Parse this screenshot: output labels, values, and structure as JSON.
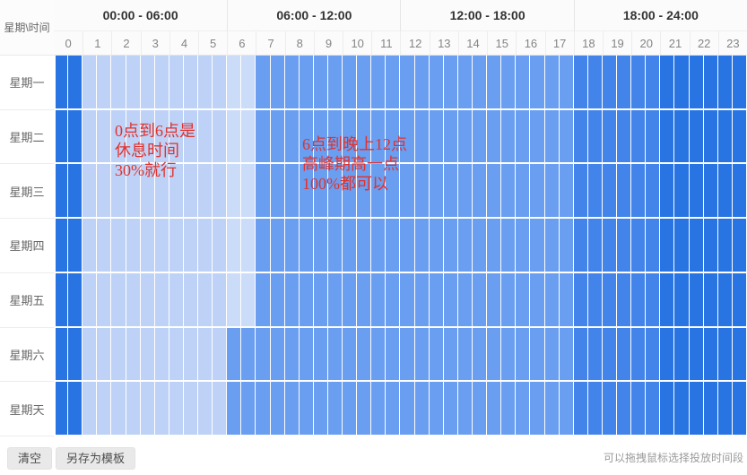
{
  "header": {
    "corner": "星期\\时间",
    "groups": [
      "00:00 - 06:00",
      "06:00 - 12:00",
      "12:00 - 18:00",
      "18:00 - 24:00"
    ],
    "hours": [
      "0",
      "1",
      "2",
      "3",
      "4",
      "5",
      "6",
      "7",
      "8",
      "9",
      "10",
      "11",
      "12",
      "13",
      "14",
      "15",
      "16",
      "17",
      "18",
      "19",
      "20",
      "21",
      "22",
      "23"
    ]
  },
  "days": [
    {
      "label": "星期一",
      "pattern": "weekday"
    },
    {
      "label": "星期二",
      "pattern": "weekday"
    },
    {
      "label": "星期三",
      "pattern": "weekday"
    },
    {
      "label": "星期四",
      "pattern": "weekday"
    },
    {
      "label": "星期五",
      "pattern": "weekday"
    },
    {
      "label": "星期六",
      "pattern": "weekend"
    },
    {
      "label": "星期天",
      "pattern": "weekend"
    }
  ],
  "patterns": {
    "weekday": [
      {
        "start": 0,
        "end": 1,
        "tier": "full"
      },
      {
        "start": 1,
        "end": 6,
        "tier": "low"
      },
      {
        "start": 6,
        "end": 7,
        "tier": "lowest"
      },
      {
        "start": 7,
        "end": 18,
        "tier": "mid"
      },
      {
        "start": 18,
        "end": 21,
        "tier": "high"
      },
      {
        "start": 21,
        "end": 24,
        "tier": "full"
      }
    ],
    "weekend": [
      {
        "start": 0,
        "end": 1,
        "tier": "full"
      },
      {
        "start": 1,
        "end": 6,
        "tier": "low"
      },
      {
        "start": 6,
        "end": 18,
        "tier": "mid"
      },
      {
        "start": 18,
        "end": 21,
        "tier": "high"
      },
      {
        "start": 21,
        "end": 24,
        "tier": "full"
      }
    ]
  },
  "tiers": {
    "full": "#2874e2",
    "high": "#4384ea",
    "mid": "#699ef0",
    "low": "#bdd2f6",
    "lowest": "#cbdcf8"
  },
  "half_hours_per_day": 48,
  "annotations": [
    {
      "color": "#e2312e",
      "lines": [
        "0点到6点是",
        "休息时间",
        "30%就行"
      ]
    },
    {
      "color": "#e2312e",
      "lines": [
        "6点到晚上12点",
        "高峰期高一点",
        "100%都可以"
      ]
    }
  ],
  "footer": {
    "clear_label": "清空",
    "save_template_label": "另存为模板",
    "hint": "可以拖拽鼠标选择投放时间段"
  }
}
